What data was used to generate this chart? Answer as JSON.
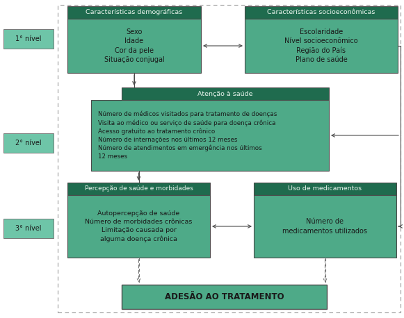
{
  "dark_green": "#1f6b4e",
  "medium_teal": "#4eaa88",
  "light_teal": "#6ec5a8",
  "bg_color": "#ffffff",
  "edge_color": "#4a4a4a",
  "arrow_color": "#4a4a4a",
  "dashed_color": "#888888",
  "text_light": "#eaf5ee",
  "text_dark": "#1a1a1a",
  "nivel_labels": [
    "1° nível",
    "2° nível",
    "3° nível"
  ],
  "box_dem_header": "Características demográficas",
  "box_dem_body": "Sexo\nIdade\nCor da pele\nSituação conjugal",
  "box_soc_header": "Características socioeconômicas",
  "box_soc_body": "Escolaridade\nNível socioeconômico\nRegião do País\nPlano de saúde",
  "box_health_header": "Atenção à saúde",
  "box_health_body": "Número de médicos visitados para tratamento de doenças\nVisita ao médico ou serviço de saúde para doença crônica\nAcesso gratuito ao tratamento crônico\nNúmero de internações nos últimos 12 meses\nNúmero de atendimentos em emergência nos últimos\n12 meses",
  "box_perc_header": "Percepção de saúde e morbidades",
  "box_perc_body": "Autopercepção de saúde\nNúmero de morbidades crônicas\nLimitação causada por\nalguma doença crônica",
  "box_med_header": "Uso de medicamentos",
  "box_med_body": "Número de\nmedicamentos utilizados",
  "box_final": "ADESÃO AO TRATAMENTO"
}
